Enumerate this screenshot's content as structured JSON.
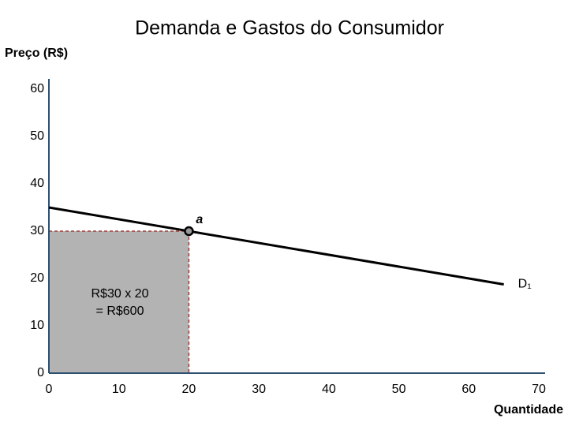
{
  "chart_data": {
    "type": "line",
    "title": "Demanda e Gastos do Consumidor",
    "y_label": "Preço (R$)",
    "x_label": "Quantidade",
    "xlim": [
      0,
      70
    ],
    "xticks": [
      0,
      10,
      20,
      30,
      40,
      50,
      60,
      70
    ],
    "ylim": [
      0,
      60
    ],
    "yticks": [
      0,
      10,
      20,
      30,
      40,
      50,
      60
    ],
    "series": [
      {
        "name": "D₁",
        "color": "#000000",
        "x": [
          0,
          65
        ],
        "values": [
          35,
          18.75
        ]
      }
    ],
    "point": {
      "label": "a",
      "x": 20,
      "y": 30
    },
    "area_color": "#b3b3b3",
    "annotation": [
      "R$30 x 20",
      "= R$600"
    ]
  }
}
